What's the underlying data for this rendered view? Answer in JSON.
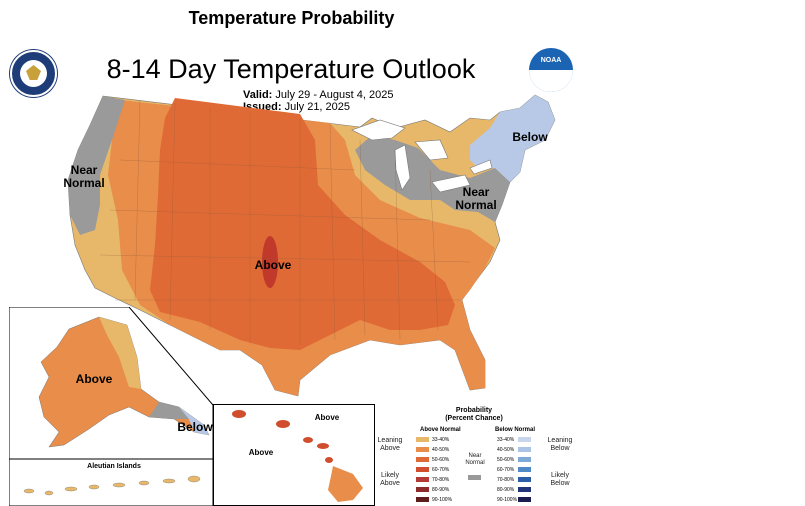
{
  "page": {
    "header": "Temperature Probability"
  },
  "map": {
    "title": "8-14 Day Temperature Outlook",
    "valid_label": "Valid:",
    "valid_value": "July 29 - August 4, 2025",
    "issued_label": "Issued:",
    "issued_value": "July 21, 2025"
  },
  "regions": {
    "west_near_normal": "Near Normal",
    "northeast_near_normal": "Near Normal",
    "northeast_below": "Below",
    "central_above": "Above",
    "alaska_above": "Above",
    "alaska_below": "Below",
    "hawaii_above_1": "Above",
    "hawaii_above_2": "Above",
    "aleutian_label": "Aleutian Islands"
  },
  "legend": {
    "title_line1": "Probability",
    "title_line2": "(Percent Chance)",
    "above_header": "Above Normal",
    "below_header": "Below Normal",
    "near_normal_line1": "Near",
    "near_normal_line2": "Normal",
    "leaning_above_1": "Leaning",
    "leaning_above_2": "Above",
    "likely_above_1": "Likely",
    "likely_above_2": "Above",
    "leaning_below_1": "Leaning",
    "leaning_below_2": "Below",
    "likely_below_1": "Likely",
    "likely_below_2": "Below",
    "above_bins": [
      "33-40%",
      "40-50%",
      "50-60%",
      "60-70%",
      "70-80%",
      "80-90%",
      "90-100%"
    ],
    "below_bins": [
      "33-40%",
      "40-50%",
      "50-60%",
      "60-70%",
      "70-80%",
      "80-90%",
      "90-100%"
    ],
    "above_colors": [
      "#e8b86a",
      "#e98d4a",
      "#e06a35",
      "#d04e2d",
      "#b43a35",
      "#8e2a2a",
      "#5e1c1c"
    ],
    "below_colors": [
      "#c7d6ec",
      "#a9c4e4",
      "#7fa9d6",
      "#4f8ac6",
      "#2a5ea6",
      "#22357a",
      "#1b1c4f"
    ],
    "near_normal_color": "#999999"
  },
  "colors": {
    "above_light": "#e8b86a",
    "above_mid": "#e98d4a",
    "above_strong": "#e06a35",
    "above_peak": "#c0392b",
    "near_normal": "#9a9a9a",
    "below_light": "#b7c9e6",
    "water": "#ffffff"
  },
  "logos": {
    "noaa_text": "NOAA"
  }
}
